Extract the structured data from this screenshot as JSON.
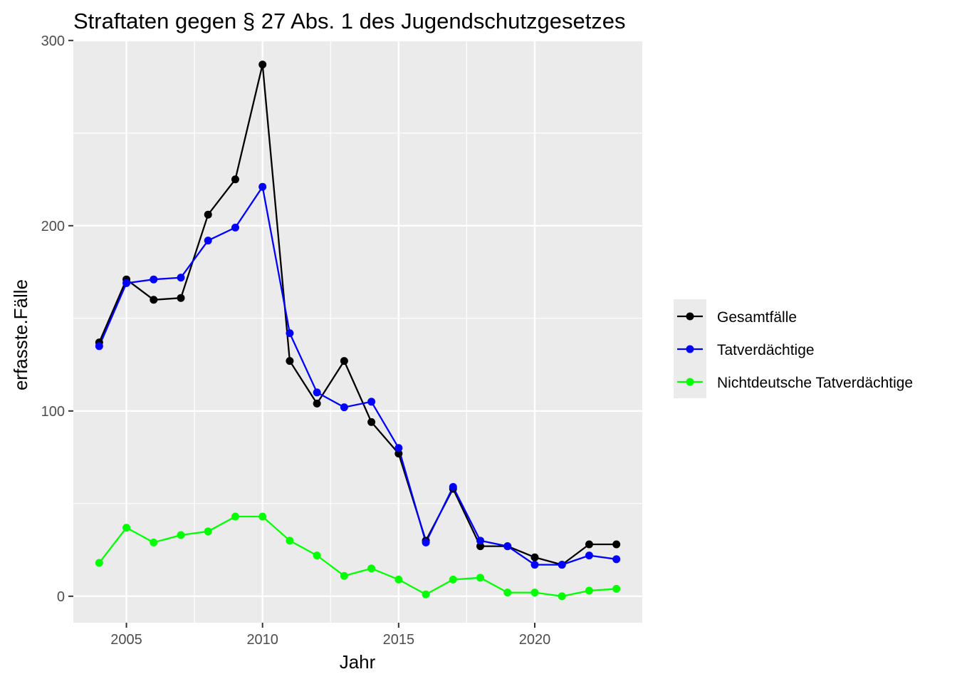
{
  "chart_data": {
    "type": "line",
    "title": "Straftaten gegen § 27 Abs. 1 des Jugendschutzgesetzes",
    "xlabel": "Jahr",
    "ylabel": "erfasste.Fälle",
    "x": [
      2004,
      2005,
      2006,
      2007,
      2008,
      2009,
      2010,
      2011,
      2012,
      2013,
      2014,
      2015,
      2016,
      2017,
      2018,
      2019,
      2020,
      2021,
      2022,
      2023
    ],
    "xlim": [
      2003.05,
      2023.95
    ],
    "ylim": [
      -14.3,
      300.3
    ],
    "xticks": [
      2005,
      2010,
      2015,
      2020
    ],
    "xtick_labels": [
      "2005",
      "2010",
      "2015",
      "2020"
    ],
    "yticks": [
      0,
      100,
      200,
      300
    ],
    "ytick_labels": [
      "0",
      "100",
      "200",
      "300"
    ],
    "grid": true,
    "legend_position": "right",
    "series": [
      {
        "name": "Gesamtfälle",
        "color": "#000000",
        "values": [
          137,
          171,
          160,
          161,
          206,
          225,
          287,
          127,
          104,
          127,
          94,
          77,
          30,
          58,
          27,
          27,
          21,
          17,
          28,
          28
        ]
      },
      {
        "name": "Tatverdächtige",
        "color": "#0000ff",
        "values": [
          135,
          169,
          171,
          172,
          192,
          199,
          221,
          142,
          110,
          102,
          105,
          80,
          29,
          59,
          30,
          27,
          17,
          17,
          22,
          20
        ]
      },
      {
        "name": "Nichtdeutsche Tatverdächtige",
        "color": "#00ff00",
        "values": [
          18,
          37,
          29,
          33,
          35,
          43,
          43,
          30,
          22,
          11,
          15,
          9,
          1,
          9,
          10,
          2,
          2,
          0,
          3,
          4
        ]
      }
    ]
  }
}
